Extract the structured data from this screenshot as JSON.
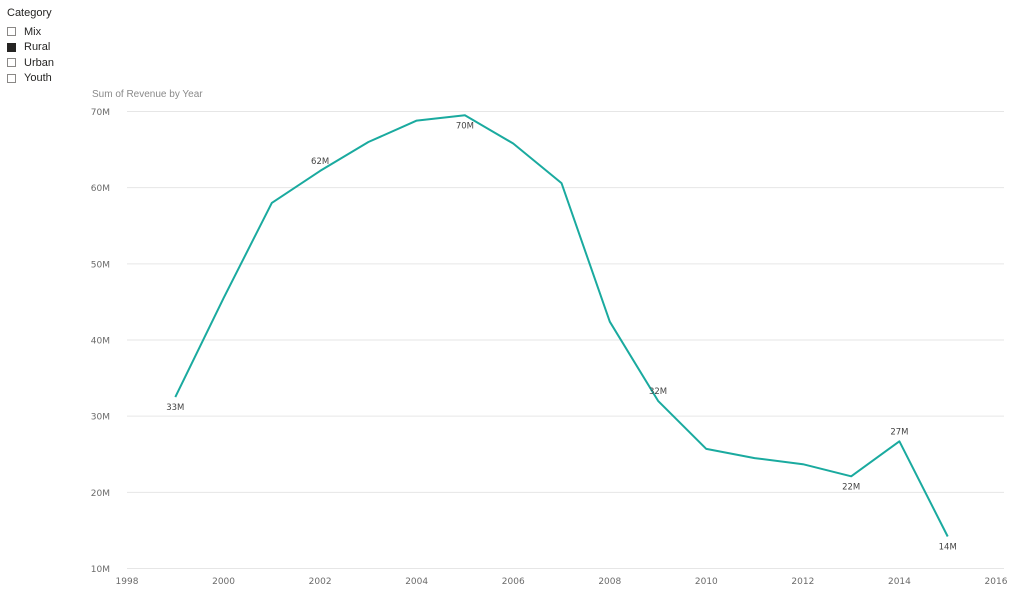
{
  "slicer": {
    "title": "Category",
    "items": [
      {
        "label": "Mix",
        "checked": false
      },
      {
        "label": "Rural",
        "checked": true
      },
      {
        "label": "Urban",
        "checked": false
      },
      {
        "label": "Youth",
        "checked": false
      }
    ]
  },
  "colors": {
    "line": "#1aaa9f",
    "grid": "#e6e6e6",
    "tick_text": "#6b6b6b",
    "label_text": "#444444"
  },
  "chart_data": {
    "type": "line",
    "title": "Sum of Revenue by Year",
    "xlabel": "",
    "ylabel": "",
    "xlim": [
      1998,
      2016
    ],
    "ylim": [
      10,
      70
    ],
    "grid": true,
    "x_ticks": [
      1998,
      2000,
      2002,
      2004,
      2006,
      2008,
      2010,
      2012,
      2014,
      2016
    ],
    "y_ticks": [
      10,
      20,
      30,
      40,
      50,
      60,
      70
    ],
    "y_tick_labels": [
      "10M",
      "20M",
      "30M",
      "40M",
      "50M",
      "60M",
      "70M"
    ],
    "series": [
      {
        "x": [
          1999,
          2000,
          2001,
          2002,
          2003,
          2004,
          2005,
          2006,
          2007,
          2008,
          2009,
          2010,
          2011,
          2012,
          2013,
          2014,
          2015
        ],
        "values": [
          32.5,
          45.5,
          58.0,
          62.2,
          66.0,
          68.8,
          69.5,
          65.8,
          60.6,
          42.4,
          32.0,
          25.7,
          24.5,
          23.7,
          22.1,
          26.7,
          14.2
        ]
      }
    ],
    "data_labels": [
      {
        "x": 1999,
        "y": 32.5,
        "text": "33M",
        "pos": "below"
      },
      {
        "x": 2002,
        "y": 62.2,
        "text": "62M",
        "pos": "above"
      },
      {
        "x": 2005,
        "y": 69.5,
        "text": "70M",
        "pos": "below"
      },
      {
        "x": 2009,
        "y": 32.0,
        "text": "32M",
        "pos": "above"
      },
      {
        "x": 2013,
        "y": 22.1,
        "text": "22M",
        "pos": "below"
      },
      {
        "x": 2014,
        "y": 26.7,
        "text": "27M",
        "pos": "above"
      },
      {
        "x": 2015,
        "y": 14.2,
        "text": "14M",
        "pos": "below"
      }
    ]
  }
}
